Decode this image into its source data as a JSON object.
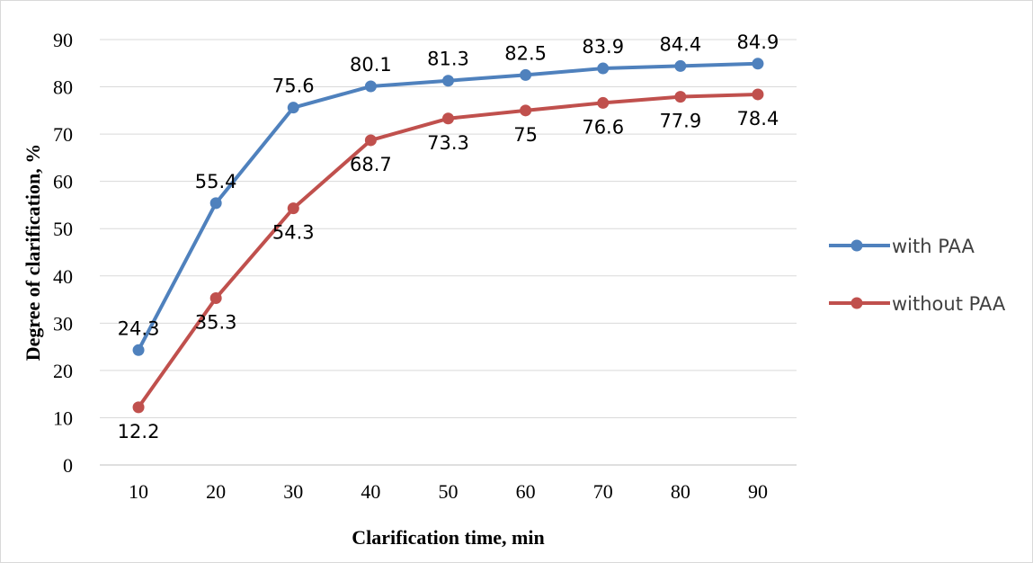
{
  "chart_data": {
    "type": "line",
    "xlabel": "Clarification time, min",
    "ylabel": "Degree of clarification, %",
    "x": [
      10,
      20,
      30,
      40,
      50,
      60,
      70,
      80,
      90
    ],
    "ylim": [
      0,
      90
    ],
    "yticks": [
      0,
      10,
      20,
      30,
      40,
      50,
      60,
      70,
      80,
      90
    ],
    "grid": "horizontal",
    "legend_position": "right",
    "series": [
      {
        "name": "with PAA",
        "color": "#4f81bd",
        "values": [
          24.3,
          55.4,
          75.6,
          80.1,
          81.3,
          82.5,
          83.9,
          84.4,
          84.9
        ],
        "labels": [
          "24.3",
          "55.4",
          "75.6",
          "80.1",
          "81.3",
          "82.5",
          "83.9",
          "84.4",
          "84.9"
        ],
        "label_position": "above"
      },
      {
        "name": "without PAA",
        "color": "#c0504d",
        "values": [
          12.2,
          35.3,
          54.3,
          68.7,
          73.3,
          75,
          76.6,
          77.9,
          78.4
        ],
        "labels": [
          "12.2",
          "35.3",
          "54.3",
          "68.7",
          "73.3",
          "75",
          "76.6",
          "77.9",
          "78.4"
        ],
        "label_position": "below"
      }
    ]
  }
}
